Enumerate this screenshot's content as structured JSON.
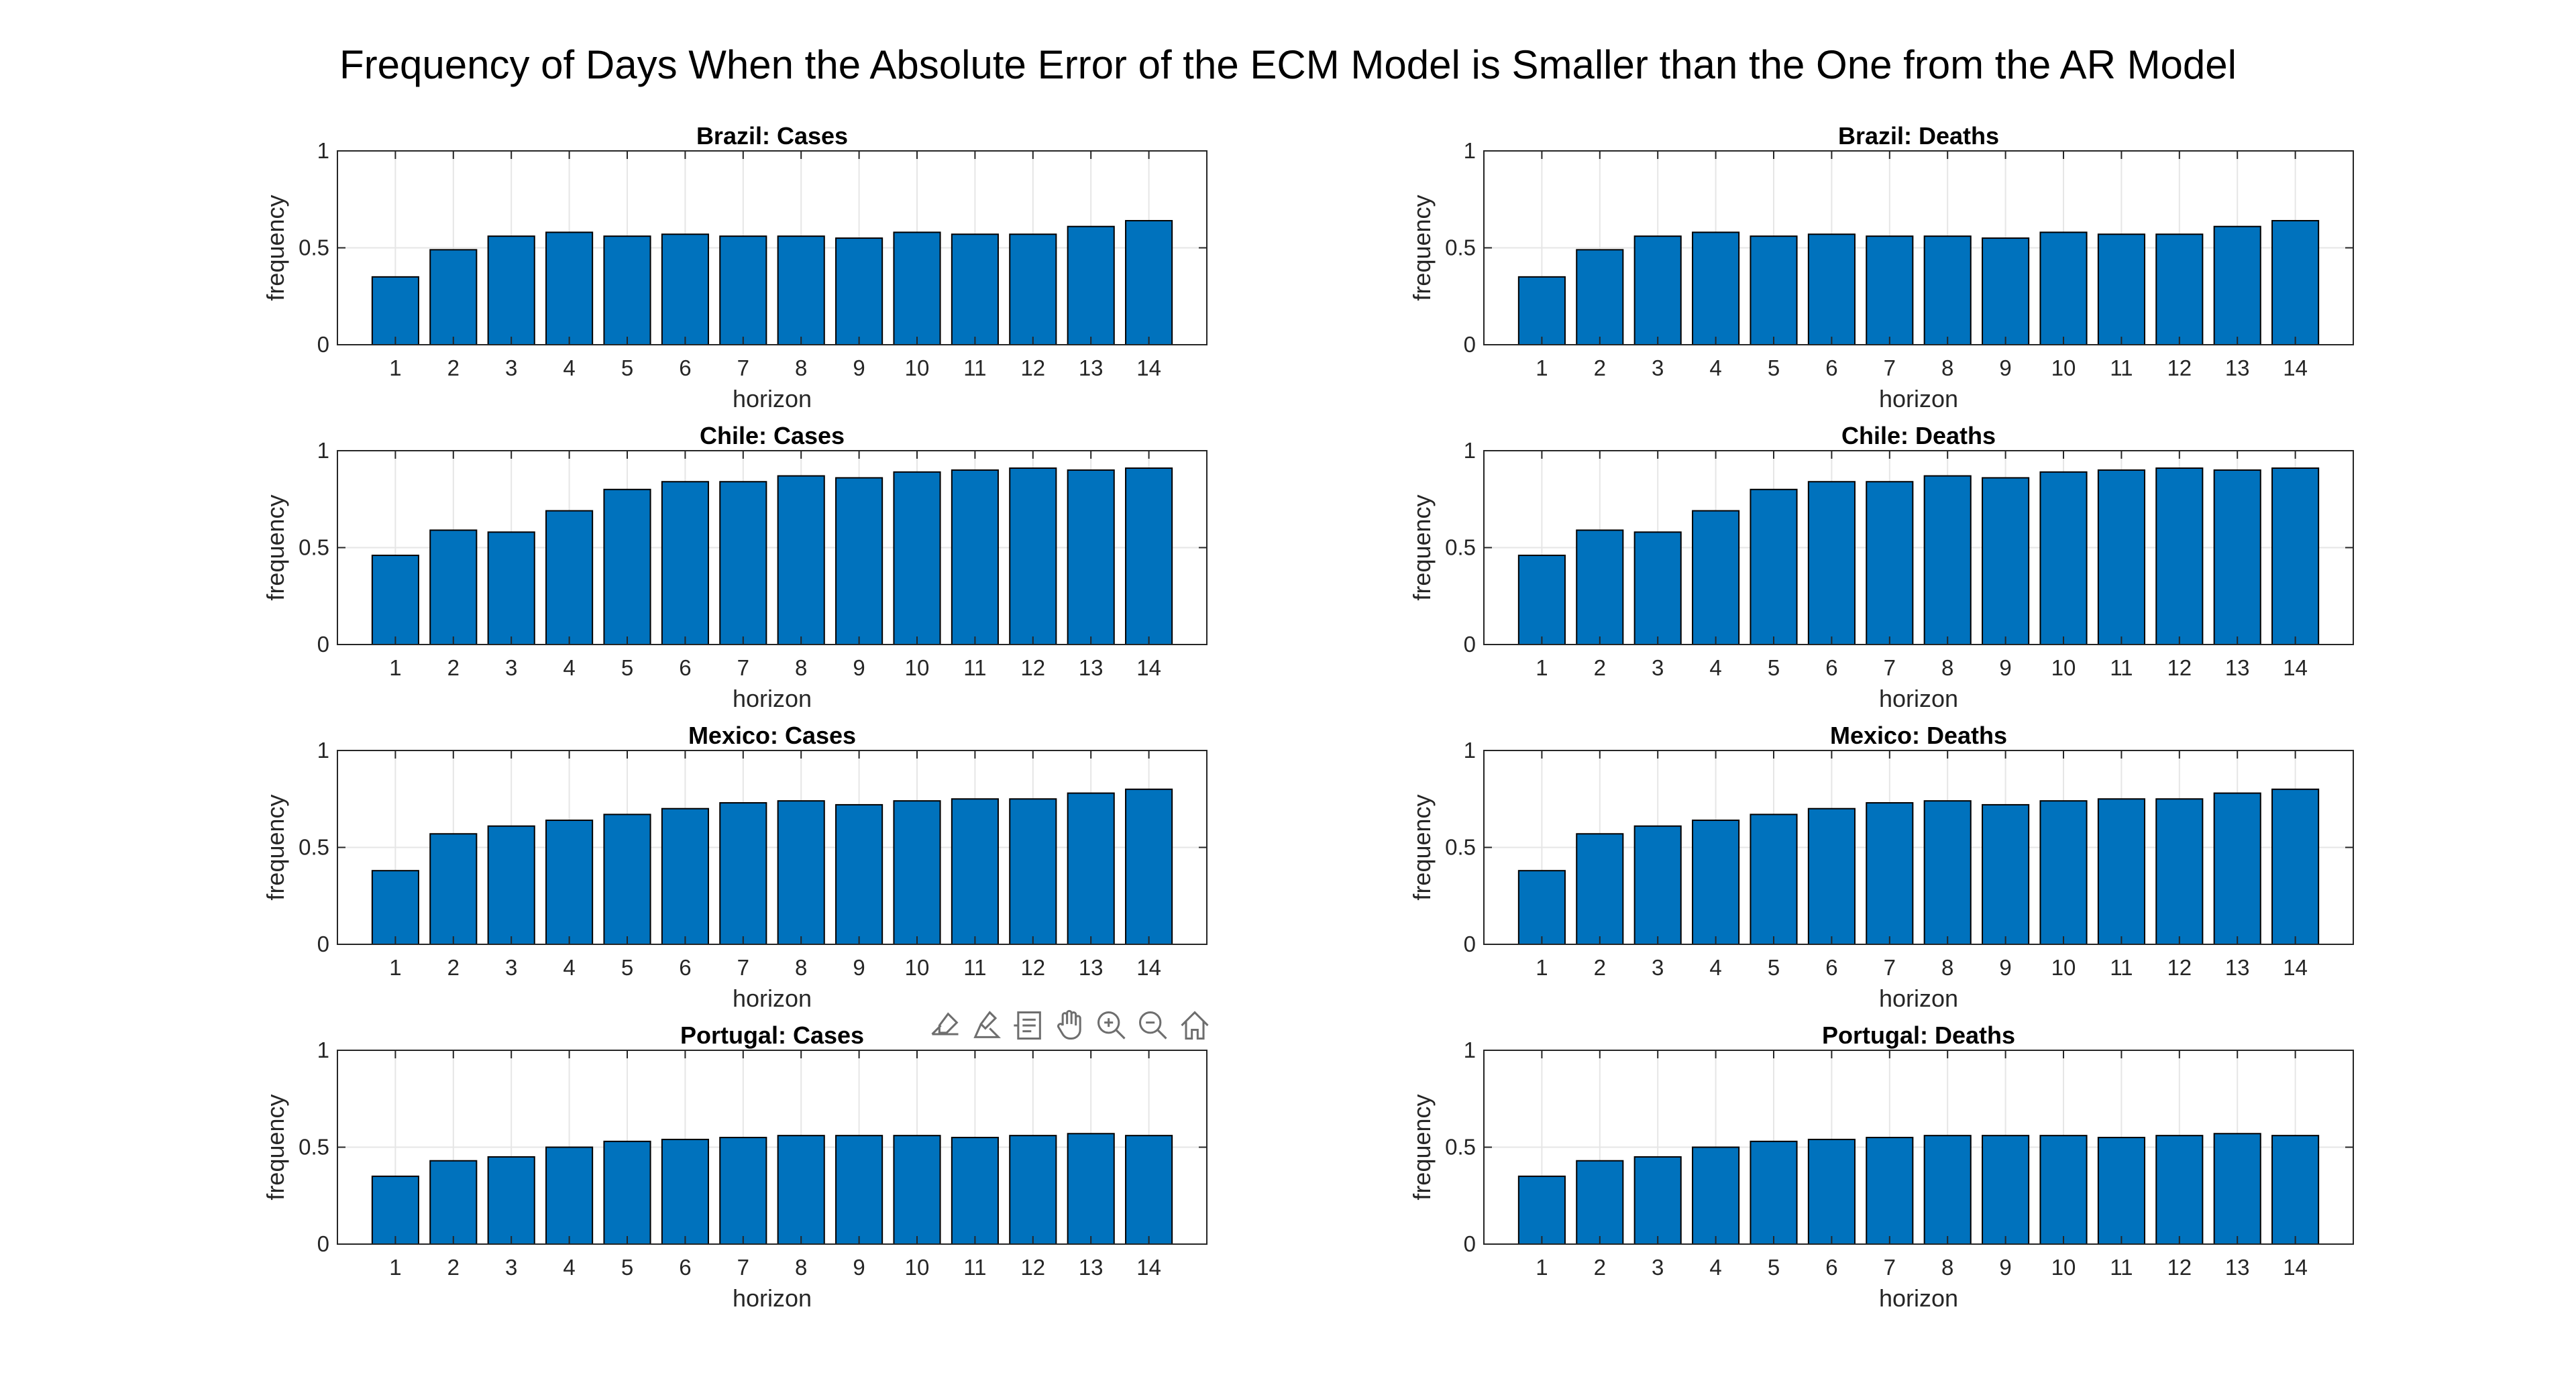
{
  "figure": {
    "title": "Frequency of Days When the Absolute Error of the ECM Model is Smaller than the One from the AR Model",
    "colors": {
      "bar": "#0072bd",
      "bar_edge": "#000000",
      "grid": "#e6e6e6",
      "axis": "#262626"
    }
  },
  "toolbar": {
    "icons": [
      "export-icon",
      "brush-icon",
      "data-tips-icon",
      "pan-icon",
      "zoom-in-icon",
      "zoom-out-icon",
      "home-icon"
    ]
  },
  "chart_data": [
    {
      "type": "bar",
      "title": "Brazil: Cases",
      "xlabel": "horizon",
      "ylabel": "frequency",
      "categories": [
        "1",
        "2",
        "3",
        "4",
        "5",
        "6",
        "7",
        "8",
        "9",
        "10",
        "11",
        "12",
        "13",
        "14"
      ],
      "values": [
        0.35,
        0.49,
        0.56,
        0.58,
        0.56,
        0.57,
        0.56,
        0.56,
        0.55,
        0.58,
        0.57,
        0.57,
        0.61,
        0.64
      ],
      "ylim": [
        0,
        1
      ],
      "yticks": [
        "0",
        "0.5",
        "1"
      ],
      "grid": true
    },
    {
      "type": "bar",
      "title": "Brazil: Deaths",
      "xlabel": "horizon",
      "ylabel": "frequency",
      "categories": [
        "1",
        "2",
        "3",
        "4",
        "5",
        "6",
        "7",
        "8",
        "9",
        "10",
        "11",
        "12",
        "13",
        "14"
      ],
      "values": [
        0.35,
        0.49,
        0.56,
        0.58,
        0.56,
        0.57,
        0.56,
        0.56,
        0.55,
        0.58,
        0.57,
        0.57,
        0.61,
        0.64
      ],
      "ylim": [
        0,
        1
      ],
      "yticks": [
        "0",
        "0.5",
        "1"
      ],
      "grid": true
    },
    {
      "type": "bar",
      "title": "Chile: Cases",
      "xlabel": "horizon",
      "ylabel": "frequency",
      "categories": [
        "1",
        "2",
        "3",
        "4",
        "5",
        "6",
        "7",
        "8",
        "9",
        "10",
        "11",
        "12",
        "13",
        "14"
      ],
      "values": [
        0.46,
        0.59,
        0.58,
        0.69,
        0.8,
        0.84,
        0.84,
        0.87,
        0.86,
        0.89,
        0.9,
        0.91,
        0.9,
        0.91
      ],
      "ylim": [
        0,
        1
      ],
      "yticks": [
        "0",
        "0.5",
        "1"
      ],
      "grid": true
    },
    {
      "type": "bar",
      "title": "Chile: Deaths",
      "xlabel": "horizon",
      "ylabel": "frequency",
      "categories": [
        "1",
        "2",
        "3",
        "4",
        "5",
        "6",
        "7",
        "8",
        "9",
        "10",
        "11",
        "12",
        "13",
        "14"
      ],
      "values": [
        0.46,
        0.59,
        0.58,
        0.69,
        0.8,
        0.84,
        0.84,
        0.87,
        0.86,
        0.89,
        0.9,
        0.91,
        0.9,
        0.91
      ],
      "ylim": [
        0,
        1
      ],
      "yticks": [
        "0",
        "0.5",
        "1"
      ],
      "grid": true
    },
    {
      "type": "bar",
      "title": "Mexico: Cases",
      "xlabel": "horizon",
      "ylabel": "frequency",
      "categories": [
        "1",
        "2",
        "3",
        "4",
        "5",
        "6",
        "7",
        "8",
        "9",
        "10",
        "11",
        "12",
        "13",
        "14"
      ],
      "values": [
        0.38,
        0.57,
        0.61,
        0.64,
        0.67,
        0.7,
        0.73,
        0.74,
        0.72,
        0.74,
        0.75,
        0.75,
        0.78,
        0.8
      ],
      "ylim": [
        0,
        1
      ],
      "yticks": [
        "0",
        "0.5",
        "1"
      ],
      "grid": true
    },
    {
      "type": "bar",
      "title": "Mexico: Deaths",
      "xlabel": "horizon",
      "ylabel": "frequency",
      "categories": [
        "1",
        "2",
        "3",
        "4",
        "5",
        "6",
        "7",
        "8",
        "9",
        "10",
        "11",
        "12",
        "13",
        "14"
      ],
      "values": [
        0.38,
        0.57,
        0.61,
        0.64,
        0.67,
        0.7,
        0.73,
        0.74,
        0.72,
        0.74,
        0.75,
        0.75,
        0.78,
        0.8
      ],
      "ylim": [
        0,
        1
      ],
      "yticks": [
        "0",
        "0.5",
        "1"
      ],
      "grid": true
    },
    {
      "type": "bar",
      "title": "Portugal: Cases",
      "xlabel": "horizon",
      "ylabel": "frequency",
      "categories": [
        "1",
        "2",
        "3",
        "4",
        "5",
        "6",
        "7",
        "8",
        "9",
        "10",
        "11",
        "12",
        "13",
        "14"
      ],
      "values": [
        0.35,
        0.43,
        0.45,
        0.5,
        0.53,
        0.54,
        0.55,
        0.56,
        0.56,
        0.56,
        0.55,
        0.56,
        0.57,
        0.56
      ],
      "ylim": [
        0,
        1
      ],
      "yticks": [
        "0",
        "0.5",
        "1"
      ],
      "grid": true
    },
    {
      "type": "bar",
      "title": "Portugal: Deaths",
      "xlabel": "horizon",
      "ylabel": "frequency",
      "categories": [
        "1",
        "2",
        "3",
        "4",
        "5",
        "6",
        "7",
        "8",
        "9",
        "10",
        "11",
        "12",
        "13",
        "14"
      ],
      "values": [
        0.35,
        0.43,
        0.45,
        0.5,
        0.53,
        0.54,
        0.55,
        0.56,
        0.56,
        0.56,
        0.55,
        0.56,
        0.57,
        0.56
      ],
      "ylim": [
        0,
        1
      ],
      "yticks": [
        "0",
        "0.5",
        "1"
      ],
      "grid": true
    }
  ]
}
